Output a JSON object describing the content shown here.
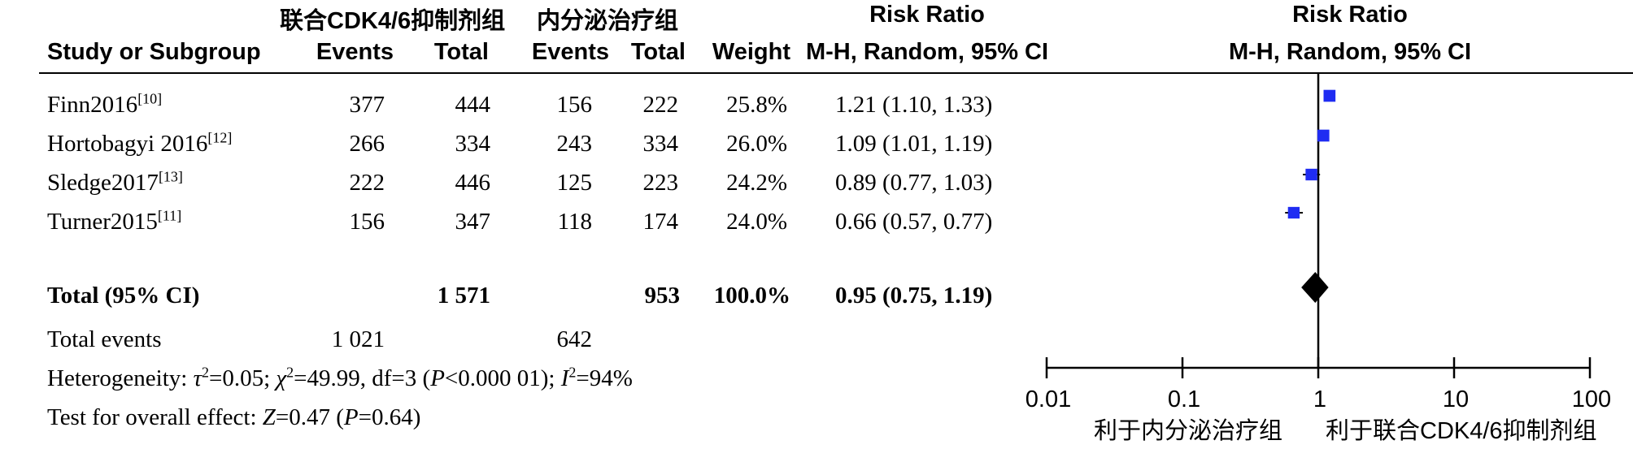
{
  "header": {
    "group1": "联合CDK4/6抑制剂组",
    "group2": "内分泌治疗组",
    "rr_title_left": "Risk Ratio",
    "rr_title_right": "Risk Ratio",
    "study_col": "Study or Subgroup",
    "g1_events": "Events",
    "g1_total": "Total",
    "g2_events": "Events",
    "g2_total": "Total",
    "weight": "Weight",
    "method_left": "M-H, Random, 95% CI",
    "method_right": "M-H, Random, 95% CI"
  },
  "studies": [
    {
      "name": "Finn2016",
      "ref": "[10]",
      "e1": "377",
      "t1": "444",
      "e2": "156",
      "t2": "222",
      "weight": "25.8%",
      "ci": "1.21 (1.10, 1.33)"
    },
    {
      "name": "Hortobagyi 2016",
      "ref": "[12]",
      "e1": "266",
      "t1": "334",
      "e2": "243",
      "t2": "334",
      "weight": "26.0%",
      "ci": "1.09 (1.01, 1.19)"
    },
    {
      "name": "Sledge2017",
      "ref": "[13]",
      "e1": "222",
      "t1": "446",
      "e2": "125",
      "t2": "223",
      "weight": "24.2%",
      "ci": "0.89 (0.77, 1.03)"
    },
    {
      "name": "Turner2015",
      "ref": "[11]",
      "e1": "156",
      "t1": "347",
      "e2": "118",
      "t2": "174",
      "weight": "24.0%",
      "ci": "0.66 (0.57, 0.77)"
    }
  ],
  "total": {
    "label": "Total (95% CI)",
    "t1": "1 571",
    "t2": "953",
    "weight": "100.0%",
    "ci": "0.95 (0.75, 1.19)"
  },
  "events": {
    "label": "Total events",
    "e1": "1 021",
    "e2": "642"
  },
  "heterogeneity": {
    "prefix": "Heterogeneity: ",
    "tau_sym": "τ",
    "tau_rest": "=0.05; ",
    "chi_sym": "χ",
    "chi_rest": "=49.99, df=3 (",
    "p_sym": "P",
    "p_rest": "<0.000 01); ",
    "i_sym": "I",
    "i_rest": "=94%"
  },
  "overall": {
    "prefix": "Test for overall effect: ",
    "z_sym": "Z",
    "z_rest": "=0.47 (",
    "p_sym": "P",
    "p_rest": "=0.64)"
  },
  "axis": {
    "favours_left": "利于内分泌治疗组",
    "favours_right": "利于联合CDK4/6抑制剂组"
  },
  "chart_data": {
    "type": "forest",
    "x_scale": "log",
    "xlim": [
      0.01,
      100
    ],
    "ticks": [
      0.01,
      0.1,
      1,
      10,
      100
    ],
    "tick_labels": [
      "0.01",
      "0.1",
      "1",
      "10",
      "100"
    ],
    "reference_line": 1,
    "marker_color": "#1f2cf2",
    "studies": [
      {
        "name": "Finn2016",
        "rr": 1.21,
        "lower": 1.1,
        "upper": 1.33,
        "weight": 25.8
      },
      {
        "name": "Hortobagyi 2016",
        "rr": 1.09,
        "lower": 1.01,
        "upper": 1.19,
        "weight": 26.0
      },
      {
        "name": "Sledge2017",
        "rr": 0.89,
        "lower": 0.77,
        "upper": 1.03,
        "weight": 24.2
      },
      {
        "name": "Turner2015",
        "rr": 0.66,
        "lower": 0.57,
        "upper": 0.77,
        "weight": 24.0
      }
    ],
    "pooled": {
      "rr": 0.95,
      "lower": 0.75,
      "upper": 1.19
    }
  }
}
